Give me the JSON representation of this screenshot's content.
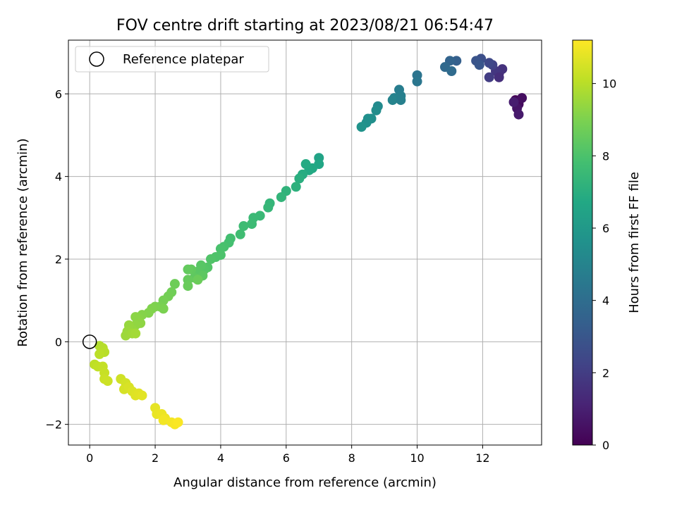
{
  "chart_data": {
    "type": "scatter",
    "title": "FOV centre drift starting at 2023/08/21 06:54:47",
    "xlabel": "Angular distance from reference (arcmin)",
    "ylabel": "Rotation from reference (arcmin)",
    "xlim": [
      -0.65,
      13.8
    ],
    "ylim": [
      -2.5,
      7.3
    ],
    "xticks": [
      0,
      2,
      4,
      6,
      8,
      10,
      12
    ],
    "yticks": [
      -2,
      0,
      2,
      4,
      6
    ],
    "xtick_labels": [
      "0",
      "2",
      "4",
      "6",
      "8",
      "10",
      "12"
    ],
    "ytick_labels": [
      "−2",
      "0",
      "2",
      "4",
      "6"
    ],
    "grid": true,
    "legend": {
      "position": "top-left",
      "entries": [
        "Reference platepar"
      ]
    },
    "reference_point": {
      "x": 0,
      "y": 0
    },
    "colorbar": {
      "label": "Hours from first FF file",
      "range": [
        0,
        11.2
      ],
      "ticks": [
        0,
        2,
        4,
        6,
        8,
        10
      ],
      "tick_labels": [
        "0",
        "2",
        "4",
        "6",
        "8",
        "10"
      ],
      "colormap": "viridis"
    },
    "series": [
      {
        "points": [
          {
            "x": 13.0,
            "y": 5.85,
            "c": 0.1
          },
          {
            "x": 13.1,
            "y": 5.75,
            "c": 0.3
          },
          {
            "x": 13.2,
            "y": 5.9,
            "c": 0.4
          },
          {
            "x": 13.05,
            "y": 5.65,
            "c": 0.6
          },
          {
            "x": 13.1,
            "y": 5.5,
            "c": 0.8
          },
          {
            "x": 12.95,
            "y": 5.8,
            "c": 0.9
          },
          {
            "x": 12.5,
            "y": 6.5,
            "c": 1.4
          },
          {
            "x": 12.6,
            "y": 6.6,
            "c": 1.6
          },
          {
            "x": 12.4,
            "y": 6.55,
            "c": 1.8
          },
          {
            "x": 12.2,
            "y": 6.4,
            "c": 2.0
          },
          {
            "x": 12.3,
            "y": 6.7,
            "c": 2.2
          },
          {
            "x": 12.5,
            "y": 6.4,
            "c": 1.5
          },
          {
            "x": 12.2,
            "y": 6.75,
            "c": 2.4
          },
          {
            "x": 11.95,
            "y": 6.85,
            "c": 2.7
          },
          {
            "x": 11.8,
            "y": 6.8,
            "c": 2.9
          },
          {
            "x": 11.9,
            "y": 6.7,
            "c": 3.0
          },
          {
            "x": 11.2,
            "y": 6.8,
            "c": 3.4
          },
          {
            "x": 11.0,
            "y": 6.8,
            "c": 3.6
          },
          {
            "x": 10.85,
            "y": 6.65,
            "c": 3.8
          },
          {
            "x": 11.05,
            "y": 6.55,
            "c": 3.9
          },
          {
            "x": 10.0,
            "y": 6.45,
            "c": 4.3
          },
          {
            "x": 10.0,
            "y": 6.3,
            "c": 4.4
          },
          {
            "x": 9.45,
            "y": 6.1,
            "c": 4.7
          },
          {
            "x": 9.5,
            "y": 5.95,
            "c": 4.8
          },
          {
            "x": 9.3,
            "y": 5.9,
            "c": 4.9
          },
          {
            "x": 9.25,
            "y": 5.85,
            "c": 5.0
          },
          {
            "x": 9.5,
            "y": 5.85,
            "c": 4.85
          },
          {
            "x": 8.8,
            "y": 5.7,
            "c": 5.3
          },
          {
            "x": 8.75,
            "y": 5.6,
            "c": 5.4
          },
          {
            "x": 8.6,
            "y": 5.4,
            "c": 5.5
          },
          {
            "x": 8.45,
            "y": 5.3,
            "c": 5.6
          },
          {
            "x": 8.3,
            "y": 5.2,
            "c": 5.7
          },
          {
            "x": 8.5,
            "y": 5.4,
            "c": 5.55
          },
          {
            "x": 7.0,
            "y": 4.45,
            "c": 6.5
          },
          {
            "x": 7.0,
            "y": 4.3,
            "c": 6.6
          },
          {
            "x": 6.8,
            "y": 4.2,
            "c": 6.7
          },
          {
            "x": 6.7,
            "y": 4.15,
            "c": 6.75
          },
          {
            "x": 6.6,
            "y": 4.3,
            "c": 6.8
          },
          {
            "x": 6.5,
            "y": 4.05,
            "c": 6.9
          },
          {
            "x": 6.4,
            "y": 3.95,
            "c": 7.0
          },
          {
            "x": 6.3,
            "y": 3.75,
            "c": 7.1
          },
          {
            "x": 6.0,
            "y": 3.65,
            "c": 7.2
          },
          {
            "x": 5.85,
            "y": 3.5,
            "c": 7.3
          },
          {
            "x": 5.5,
            "y": 3.35,
            "c": 7.35
          },
          {
            "x": 5.45,
            "y": 3.25,
            "c": 7.4
          },
          {
            "x": 5.2,
            "y": 3.05,
            "c": 7.5
          },
          {
            "x": 5.0,
            "y": 3.0,
            "c": 7.55
          },
          {
            "x": 4.95,
            "y": 2.85,
            "c": 7.6
          },
          {
            "x": 4.7,
            "y": 2.8,
            "c": 7.65
          },
          {
            "x": 4.6,
            "y": 2.6,
            "c": 7.7
          },
          {
            "x": 4.3,
            "y": 2.5,
            "c": 7.8
          },
          {
            "x": 4.25,
            "y": 2.4,
            "c": 7.85
          },
          {
            "x": 4.1,
            "y": 2.3,
            "c": 7.9
          },
          {
            "x": 4.0,
            "y": 2.25,
            "c": 7.95
          },
          {
            "x": 4.0,
            "y": 2.1,
            "c": 8.0
          },
          {
            "x": 3.85,
            "y": 2.05,
            "c": 8.05
          },
          {
            "x": 3.7,
            "y": 2.0,
            "c": 8.1
          },
          {
            "x": 3.6,
            "y": 1.8,
            "c": 8.15
          },
          {
            "x": 3.5,
            "y": 1.75,
            "c": 8.2
          },
          {
            "x": 3.4,
            "y": 1.85,
            "c": 8.25
          },
          {
            "x": 3.3,
            "y": 1.7,
            "c": 8.3
          },
          {
            "x": 3.45,
            "y": 1.6,
            "c": 8.35
          },
          {
            "x": 3.2,
            "y": 1.55,
            "c": 8.4
          },
          {
            "x": 3.1,
            "y": 1.75,
            "c": 8.45
          },
          {
            "x": 3.0,
            "y": 1.75,
            "c": 8.5
          },
          {
            "x": 3.0,
            "y": 1.5,
            "c": 8.55
          },
          {
            "x": 3.0,
            "y": 1.35,
            "c": 8.6
          },
          {
            "x": 3.3,
            "y": 1.5,
            "c": 8.65
          },
          {
            "x": 2.6,
            "y": 1.4,
            "c": 8.7
          },
          {
            "x": 2.5,
            "y": 1.2,
            "c": 8.75
          },
          {
            "x": 2.4,
            "y": 1.1,
            "c": 8.8
          },
          {
            "x": 2.25,
            "y": 1.0,
            "c": 8.85
          },
          {
            "x": 2.15,
            "y": 0.85,
            "c": 8.9
          },
          {
            "x": 2.25,
            "y": 0.8,
            "c": 8.95
          },
          {
            "x": 2.0,
            "y": 0.85,
            "c": 9.0
          },
          {
            "x": 1.9,
            "y": 0.8,
            "c": 9.05
          },
          {
            "x": 1.8,
            "y": 0.7,
            "c": 9.1
          },
          {
            "x": 1.6,
            "y": 0.65,
            "c": 9.15
          },
          {
            "x": 1.5,
            "y": 0.55,
            "c": 9.2
          },
          {
            "x": 1.4,
            "y": 0.6,
            "c": 9.25
          },
          {
            "x": 1.55,
            "y": 0.45,
            "c": 9.3
          },
          {
            "x": 1.4,
            "y": 0.4,
            "c": 9.35
          },
          {
            "x": 1.3,
            "y": 0.3,
            "c": 9.4
          },
          {
            "x": 1.2,
            "y": 0.4,
            "c": 9.45
          },
          {
            "x": 1.15,
            "y": 0.25,
            "c": 9.5
          },
          {
            "x": 1.1,
            "y": 0.15,
            "c": 9.55
          },
          {
            "x": 1.3,
            "y": 0.2,
            "c": 9.6
          },
          {
            "x": 1.4,
            "y": 0.2,
            "c": 9.65
          },
          {
            "x": 0.3,
            "y": -0.1,
            "c": 9.9
          },
          {
            "x": 0.4,
            "y": -0.15,
            "c": 9.95
          },
          {
            "x": 0.45,
            "y": -0.25,
            "c": 10.0
          },
          {
            "x": 0.3,
            "y": -0.3,
            "c": 10.05
          },
          {
            "x": 0.15,
            "y": -0.55,
            "c": 10.1
          },
          {
            "x": 0.25,
            "y": -0.6,
            "c": 10.15
          },
          {
            "x": 0.4,
            "y": -0.6,
            "c": 10.2
          },
          {
            "x": 0.45,
            "y": -0.75,
            "c": 10.25
          },
          {
            "x": 0.45,
            "y": -0.9,
            "c": 10.3
          },
          {
            "x": 0.55,
            "y": -0.95,
            "c": 10.35
          },
          {
            "x": 0.95,
            "y": -0.9,
            "c": 10.4
          },
          {
            "x": 1.1,
            "y": -1.0,
            "c": 10.45
          },
          {
            "x": 1.05,
            "y": -1.15,
            "c": 10.5
          },
          {
            "x": 1.2,
            "y": -1.1,
            "c": 10.55
          },
          {
            "x": 1.3,
            "y": -1.2,
            "c": 10.6
          },
          {
            "x": 1.4,
            "y": -1.3,
            "c": 10.65
          },
          {
            "x": 1.5,
            "y": -1.25,
            "c": 10.7
          },
          {
            "x": 1.6,
            "y": -1.3,
            "c": 10.72
          },
          {
            "x": 2.0,
            "y": -1.6,
            "c": 10.8
          },
          {
            "x": 2.05,
            "y": -1.75,
            "c": 10.85
          },
          {
            "x": 2.2,
            "y": -1.75,
            "c": 10.9
          },
          {
            "x": 2.3,
            "y": -1.85,
            "c": 10.95
          },
          {
            "x": 2.25,
            "y": -1.9,
            "c": 11.0
          },
          {
            "x": 2.5,
            "y": -1.95,
            "c": 11.05
          },
          {
            "x": 2.6,
            "y": -2.0,
            "c": 11.1
          },
          {
            "x": 2.7,
            "y": -1.95,
            "c": 11.15
          }
        ]
      }
    ]
  }
}
